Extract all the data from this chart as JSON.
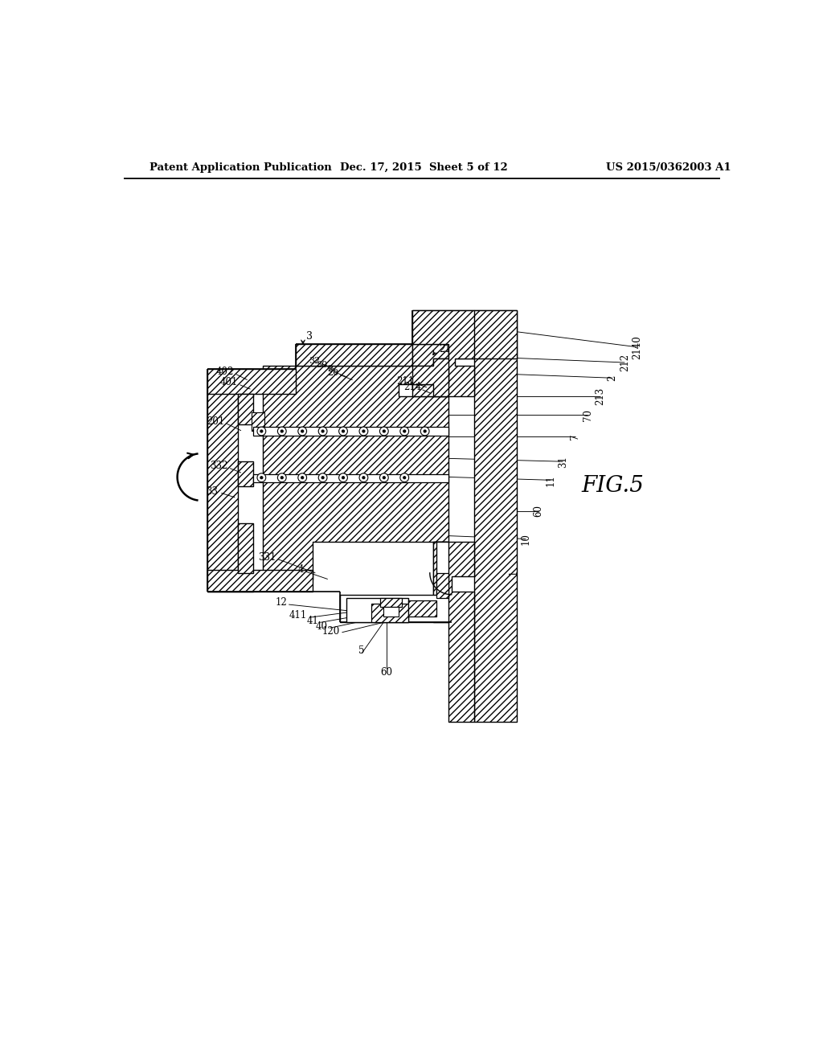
{
  "background_color": "#ffffff",
  "header_left": "Patent Application Publication",
  "header_center": "Dec. 17, 2015  Sheet 5 of 12",
  "header_right": "US 2015/0362003 A1",
  "fig_label": "FIG.5",
  "hatch": "////",
  "line_color": "#000000"
}
